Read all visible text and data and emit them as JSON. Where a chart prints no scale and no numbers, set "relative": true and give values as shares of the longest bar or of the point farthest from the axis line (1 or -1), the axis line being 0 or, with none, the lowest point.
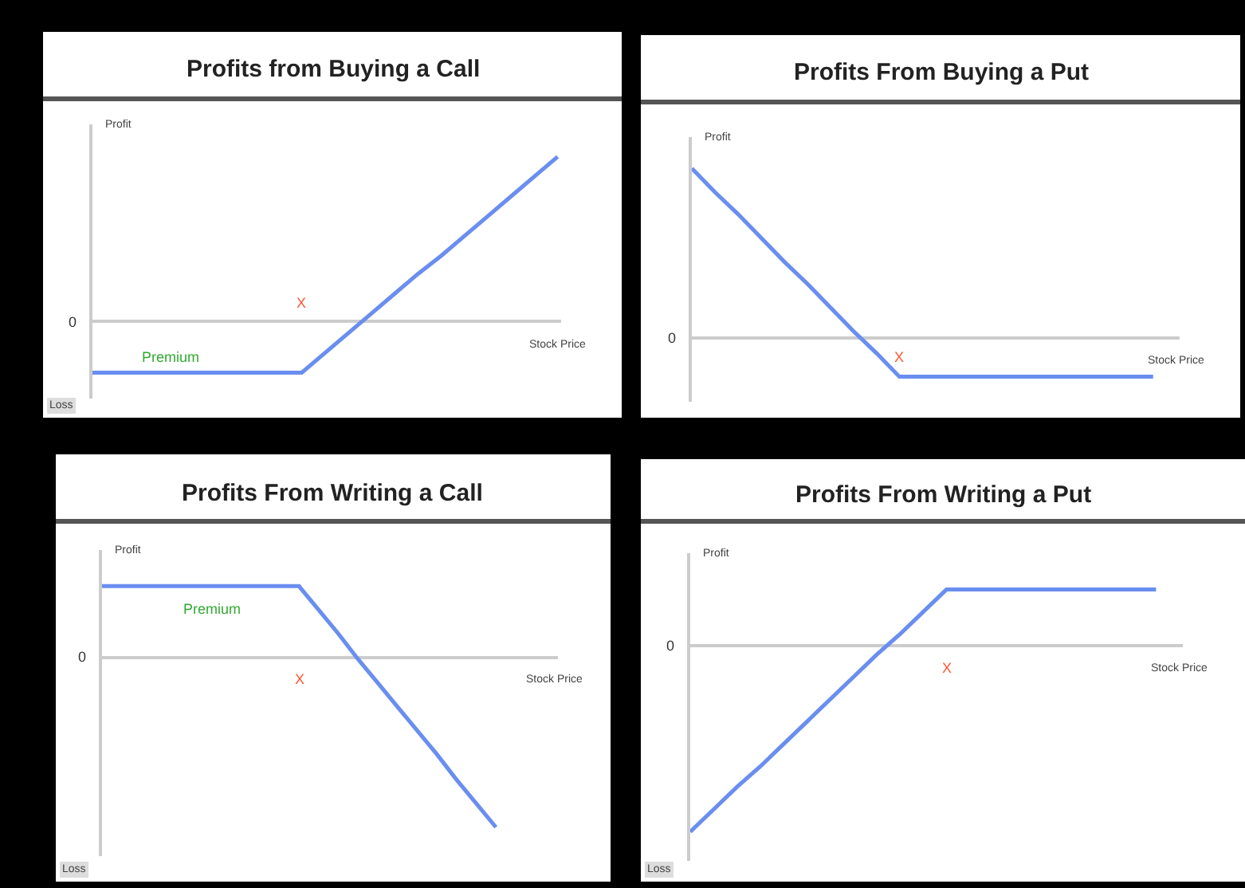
{
  "chart_data": [
    {
      "type": "line",
      "title": "Profits from Buying a Call",
      "xlabel": "Stock Price",
      "ylabel": "Profit",
      "relative": true,
      "categories": [
        null,
        null,
        null,
        null,
        null,
        null,
        null,
        null,
        null,
        null,
        null,
        null,
        null,
        null,
        null,
        null,
        null,
        null,
        null,
        null,
        null
      ],
      "series": [
        {
          "color": "#6a8ef0",
          "values": [
            -0.31,
            -0.31,
            -0.31,
            -0.31,
            -0.31,
            -0.31,
            -0.31,
            -0.31,
            -0.31,
            -0.31,
            -0.19,
            -0.07,
            0.05,
            0.17,
            0.29,
            0.4,
            0.52,
            0.64,
            0.76,
            0.88,
            1.0
          ]
        }
      ],
      "marker": "none",
      "line_style": "solid",
      "annotations": [
        "0",
        "X",
        {
          "text": "Premium",
          "y": -0.31
        },
        "Loss"
      ]
    },
    {
      "type": "line",
      "title": "Profits From Buying a Put",
      "xlabel": "Stock Price",
      "ylabel": "Profit",
      "relative": true,
      "categories": [
        null,
        null,
        null,
        null,
        null,
        null,
        null,
        null,
        null,
        null,
        null,
        null,
        null,
        null,
        null,
        null,
        null,
        null,
        null,
        null,
        null,
        null
      ],
      "series": [
        {
          "color": "#6a8ef0",
          "values": [
            1.0,
            0.86,
            0.73,
            0.59,
            0.45,
            0.32,
            0.18,
            0.04,
            -0.09,
            -0.23,
            -0.23,
            -0.23,
            -0.23,
            -0.23,
            -0.23,
            -0.23,
            -0.23,
            -0.23,
            -0.23,
            -0.23,
            -0.23,
            null
          ]
        }
      ],
      "marker": "none",
      "line_style": "solid",
      "annotations": [
        "0",
        "X"
      ]
    },
    {
      "type": "line",
      "title": "Profits From Writing a Call",
      "xlabel": "Stock Price",
      "ylabel": "Profit",
      "relative": true,
      "categories": [
        null,
        null,
        null,
        null,
        null,
        null,
        null,
        null,
        null,
        null,
        null,
        null,
        null,
        null,
        null,
        null,
        null,
        null,
        null,
        null,
        null,
        null,
        null,
        null
      ],
      "series": [
        {
          "color": "#6a8ef0",
          "values": [
            0.42,
            0.42,
            0.42,
            0.42,
            0.42,
            0.42,
            0.42,
            0.42,
            0.42,
            0.42,
            0.42,
            0.28,
            0.14,
            -0.01,
            -0.15,
            -0.29,
            -0.43,
            -0.57,
            -0.72,
            -0.86,
            -1.0,
            null,
            null,
            null
          ]
        }
      ],
      "marker": "none",
      "line_style": "solid",
      "annotations": [
        "0",
        "X",
        {
          "text": "Premium",
          "y": 0.42
        },
        "Loss"
      ]
    },
    {
      "type": "line",
      "title": "Profits From Writing a Put",
      "xlabel": "Stock Price",
      "ylabel": "Profit",
      "relative": true,
      "categories": [
        null,
        null,
        null,
        null,
        null,
        null,
        null,
        null,
        null,
        null,
        null,
        null,
        null,
        null,
        null,
        null,
        null,
        null,
        null,
        null,
        null,
        null
      ],
      "series": [
        {
          "color": "#6a8ef0",
          "values": [
            -1.0,
            -0.88,
            -0.76,
            -0.65,
            -0.53,
            -0.41,
            -0.29,
            -0.17,
            -0.05,
            0.06,
            0.18,
            0.3,
            0.3,
            0.3,
            0.3,
            0.3,
            0.3,
            0.3,
            0.3,
            0.3,
            0.3,
            null
          ]
        }
      ],
      "marker": "none",
      "line_style": "solid",
      "annotations": [
        "0",
        "X",
        "Loss"
      ]
    }
  ]
}
